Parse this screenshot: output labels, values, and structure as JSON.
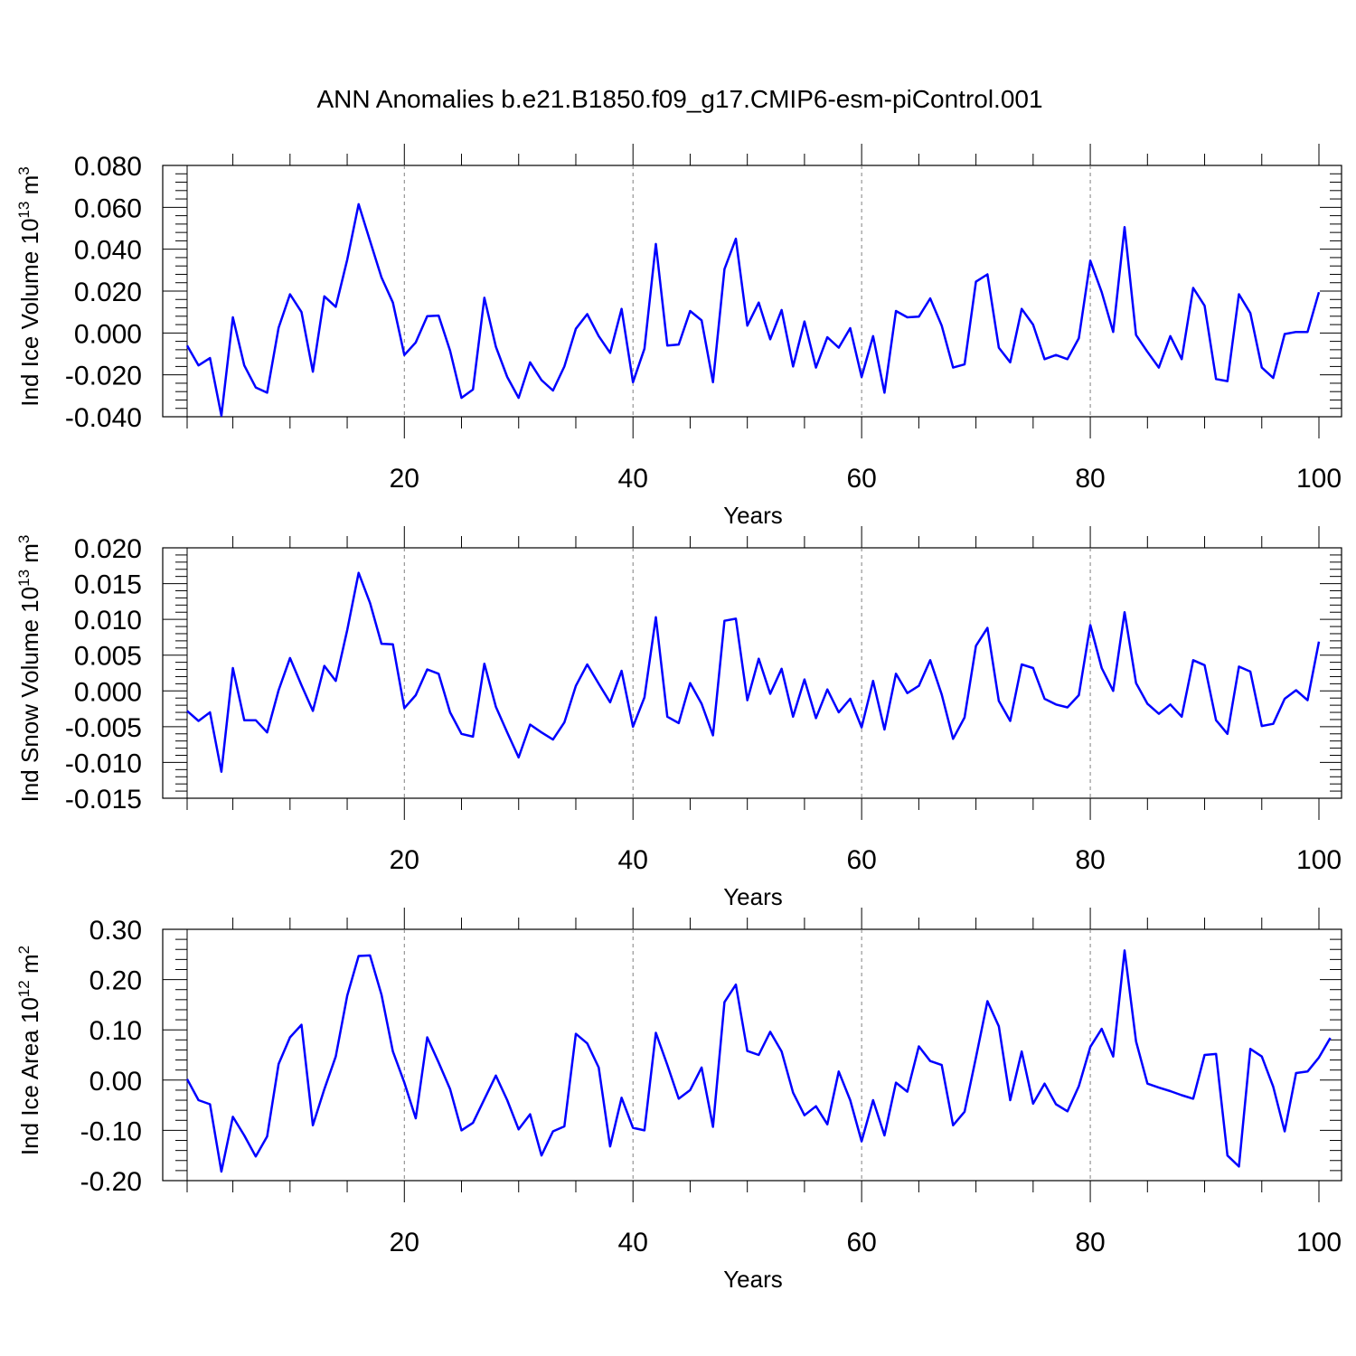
{
  "title": "ANN Anomalies b.e21.B1850.f09_g17.CMIP6-esm-piControl.001",
  "colors": {
    "series": "#0000ff",
    "grid": "#808080"
  },
  "chart_data": [
    {
      "type": "line",
      "ylabel": {
        "text": "Ind Ice Volume 10",
        "sup": "13",
        "unit": " m",
        "unit_sup": "3"
      },
      "xlabel": "Years",
      "xlim": [
        1,
        100
      ],
      "ylim": [
        -0.04,
        0.08
      ],
      "yticks": [
        -0.04,
        -0.02,
        0.0,
        0.02,
        0.04,
        0.06,
        0.08
      ],
      "ytick_labels": [
        "-0.040",
        "-0.020",
        "0.000",
        "0.020",
        "0.040",
        "0.060",
        "0.080"
      ],
      "xticks": [
        20,
        40,
        60,
        80,
        100
      ],
      "xtick_labels": [
        "20",
        "40",
        "60",
        "80",
        "100"
      ],
      "grid": "vertical dashed at major x ticks",
      "series": [
        {
          "values": [
            -0.006,
            -0.0155,
            -0.012,
            -0.0395,
            0.0075,
            -0.0155,
            -0.026,
            -0.0285,
            0.0025,
            0.0185,
            0.01,
            -0.0185,
            0.0175,
            0.0125,
            0.035,
            0.0615,
            0.044,
            0.0265,
            0.0145,
            -0.0105,
            -0.0045,
            0.008,
            0.0083,
            -0.0085,
            -0.031,
            -0.027,
            0.0168,
            -0.0065,
            -0.021,
            -0.031,
            -0.014,
            -0.0225,
            -0.0275,
            -0.016,
            0.002,
            0.009,
            -0.0015,
            -0.0095,
            0.0115,
            -0.0235,
            -0.0075,
            0.0425,
            -0.006,
            -0.0055,
            0.0105,
            0.006,
            -0.0235,
            0.0305,
            0.045,
            0.0035,
            0.0145,
            -0.003,
            0.011,
            -0.016,
            0.0055,
            -0.0165,
            -0.002,
            -0.007,
            0.0023,
            -0.021,
            -0.0015,
            -0.0285,
            0.0105,
            0.0075,
            0.0078,
            0.0165,
            0.0035,
            -0.0165,
            -0.015,
            0.0245,
            0.028,
            -0.007,
            -0.014,
            0.0115,
            0.004,
            -0.0125,
            -0.0105,
            -0.0125,
            -0.0025,
            0.0345,
            0.0195,
            0.0005,
            0.0505,
            -0.001,
            -0.009,
            -0.0165,
            -0.0015,
            -0.0125,
            0.0215,
            0.013,
            -0.022,
            -0.023,
            0.0185,
            0.0095,
            -0.0165,
            -0.0215,
            -0.0005,
            0.0005,
            0.0005,
            0.0195
          ]
        }
      ]
    },
    {
      "type": "line",
      "ylabel": {
        "text": "Ind Snow Volume 10",
        "sup": "13",
        "unit": " m",
        "unit_sup": "3"
      },
      "xlabel": "Years",
      "xlim": [
        1,
        100
      ],
      "ylim": [
        -0.015,
        0.02
      ],
      "yticks": [
        -0.015,
        -0.01,
        -0.005,
        0.0,
        0.005,
        0.01,
        0.015,
        0.02
      ],
      "ytick_labels": [
        "-0.015",
        "-0.010",
        "-0.005",
        "0.000",
        "0.005",
        "0.010",
        "0.015",
        "0.020"
      ],
      "xticks": [
        20,
        40,
        60,
        80,
        100
      ],
      "xtick_labels": [
        "20",
        "40",
        "60",
        "80",
        "100"
      ],
      "grid": "vertical dashed at major x ticks",
      "series": [
        {
          "values": [
            -0.0028,
            -0.0042,
            -0.003,
            -0.0113,
            0.0032,
            -0.0041,
            -0.0041,
            -0.0058,
            0.0001,
            0.0046,
            0.0008,
            -0.0028,
            0.0035,
            0.0014,
            0.0085,
            0.0165,
            0.0123,
            0.0066,
            0.0065,
            -0.0024,
            -0.0006,
            0.003,
            0.0024,
            -0.003,
            -0.006,
            -0.0064,
            0.0038,
            -0.0022,
            -0.0058,
            -0.0093,
            -0.0047,
            -0.0058,
            -0.0068,
            -0.0044,
            0.0007,
            0.0037,
            0.001,
            -0.0016,
            0.0028,
            -0.005,
            -0.0009,
            0.0103,
            -0.0036,
            -0.0045,
            0.0011,
            -0.0018,
            -0.0062,
            0.0098,
            0.0101,
            -0.0013,
            0.0045,
            -0.0004,
            0.0031,
            -0.0036,
            0.0016,
            -0.0038,
            0.0002,
            -0.003,
            -0.0011,
            -0.0051,
            0.0014,
            -0.0054,
            0.0024,
            -0.0003,
            0.0007,
            0.0043,
            -0.0005,
            -0.0067,
            -0.0037,
            0.0063,
            0.0088,
            -0.0014,
            -0.0042,
            0.0037,
            0.0032,
            -0.0011,
            -0.0019,
            -0.0023,
            -0.0006,
            0.0092,
            0.0032,
            0.0,
            0.011,
            0.0011,
            -0.0018,
            -0.0032,
            -0.0019,
            -0.0036,
            0.0043,
            0.0036,
            -0.0041,
            -0.006,
            0.0034,
            0.0027,
            -0.0049,
            -0.0046,
            -0.0011,
            0.0001,
            -0.0013,
            0.0069
          ]
        }
      ]
    },
    {
      "type": "line",
      "ylabel": {
        "text": "Ind Ice Area 10",
        "sup": "12",
        "unit": " m",
        "unit_sup": "2"
      },
      "xlabel": "Years",
      "xlim": [
        1,
        100
      ],
      "ylim": [
        -0.2,
        0.3
      ],
      "yticks": [
        -0.2,
        -0.1,
        0.0,
        0.1,
        0.2,
        0.3
      ],
      "ytick_labels": [
        "-0.20",
        "-0.10",
        "0.00",
        "0.10",
        "0.20",
        "0.30"
      ],
      "xticks": [
        20,
        40,
        60,
        80,
        100
      ],
      "xtick_labels": [
        "20",
        "40",
        "60",
        "80",
        "100"
      ],
      "grid": "vertical dashed at major x ticks",
      "series": [
        {
          "values": [
            0.002,
            -0.04,
            -0.048,
            -0.182,
            -0.073,
            -0.11,
            -0.152,
            -0.112,
            0.032,
            0.085,
            0.11,
            -0.09,
            -0.018,
            0.047,
            0.168,
            0.247,
            0.248,
            0.17,
            0.057,
            -0.005,
            -0.076,
            0.085,
            0.035,
            -0.018,
            -0.1,
            -0.085,
            -0.038,
            0.009,
            -0.04,
            -0.098,
            -0.068,
            -0.15,
            -0.102,
            -0.092,
            0.092,
            0.073,
            0.025,
            -0.132,
            -0.035,
            -0.095,
            -0.1,
            0.094,
            0.03,
            -0.037,
            -0.02,
            0.025,
            -0.093,
            0.155,
            0.19,
            0.058,
            0.05,
            0.096,
            0.057,
            -0.025,
            -0.07,
            -0.052,
            -0.088,
            0.017,
            -0.04,
            -0.122,
            -0.04,
            -0.11,
            -0.005,
            -0.023,
            0.067,
            0.038,
            0.03,
            -0.09,
            -0.063,
            0.045,
            0.157,
            0.107,
            -0.04,
            0.057,
            -0.047,
            -0.007,
            -0.048,
            -0.062,
            -0.012,
            0.066,
            0.102,
            0.047,
            0.258,
            0.077,
            -0.007,
            -0.015,
            -0.022,
            -0.03,
            -0.037,
            0.05,
            0.052,
            -0.15,
            -0.172,
            0.062,
            0.047,
            -0.013,
            -0.102,
            0.014,
            0.017,
            0.045,
            0.084
          ]
        }
      ]
    }
  ]
}
